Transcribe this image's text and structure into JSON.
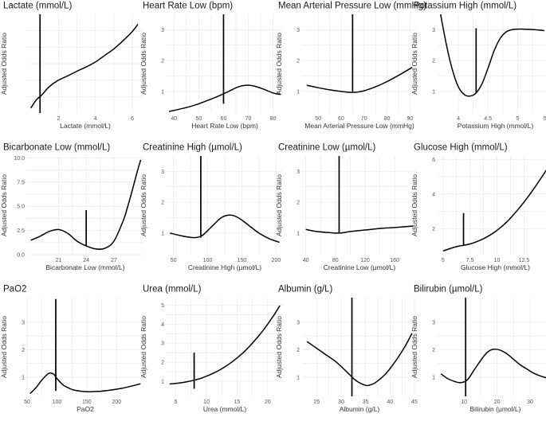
{
  "figure": {
    "background": "#ffffff",
    "line_color": "#000000",
    "grid_color": "#e6e6e6"
  },
  "chart_data": [
    {
      "type": "line",
      "title": "Lactate (mmol/L)",
      "xlabel": "Lactate (mmol/L)",
      "ylabel": "Adjusted Odds Ratio",
      "xlim": [
        0.3,
        6.6
      ],
      "ylim": [
        0.5,
        3.5
      ],
      "xticks": [
        2,
        4,
        6
      ],
      "yticks": [],
      "x": [
        0.5,
        0.8,
        1.1,
        1.5,
        2.0,
        2.5,
        3.0,
        3.5,
        4.0,
        4.5,
        5.0,
        5.5,
        6.0,
        6.3
      ],
      "y": [
        0.65,
        0.9,
        1.05,
        1.3,
        1.5,
        1.63,
        1.77,
        1.9,
        2.05,
        2.25,
        2.45,
        2.7,
        2.98,
        3.2
      ],
      "cutpoint": 1.0,
      "cutpoint_ylim": [
        0.5,
        3.5
      ]
    },
    {
      "type": "line",
      "title": "Heart Rate Low (bpm)",
      "xlabel": "Heart Rate Low (bpm)",
      "ylabel": "Adjusted Odds Ratio",
      "xlim": [
        37,
        84
      ],
      "ylim": [
        0.3,
        3.5
      ],
      "xticks": [
        40,
        50,
        60,
        70,
        80
      ],
      "yticks": [
        1,
        2,
        3
      ],
      "x": [
        38,
        42,
        46,
        50,
        54,
        58,
        62,
        66,
        69,
        72,
        76,
        80,
        83
      ],
      "y": [
        0.35,
        0.42,
        0.5,
        0.6,
        0.72,
        0.85,
        1.0,
        1.15,
        1.2,
        1.18,
        1.08,
        0.95,
        0.9
      ],
      "cutpoint": 60,
      "cutpoint_ylim": [
        0.6,
        3.5
      ]
    },
    {
      "type": "line",
      "title": "Mean Arterial Pressure Low (mmHg)",
      "xlabel": "Mean Arterial Pressure Low (mmHg)",
      "ylabel": "Adjusted Odds Ratio",
      "xlim": [
        43,
        93
      ],
      "ylim": [
        0.3,
        3.5
      ],
      "xticks": [
        50,
        60,
        70,
        80,
        90
      ],
      "yticks": [
        1,
        2,
        3
      ],
      "x": [
        45,
        50,
        55,
        60,
        64,
        67,
        70,
        75,
        80,
        85,
        91
      ],
      "y": [
        1.2,
        1.12,
        1.05,
        1.0,
        0.97,
        0.98,
        1.02,
        1.15,
        1.32,
        1.52,
        1.78
      ],
      "cutpoint": 65,
      "cutpoint_ylim": [
        1.0,
        3.5
      ]
    },
    {
      "type": "line",
      "title": "Potassium High (mmol/L)",
      "xlabel": "Potassium High (mmol/L)",
      "ylabel": "Adjusted Odds Ratio",
      "xlim": [
        3.65,
        5.6
      ],
      "ylim": [
        0.3,
        3.5
      ],
      "xticks": [
        4.0,
        4.5,
        5.0,
        5.5
      ],
      "yticks": [
        1,
        2,
        3
      ],
      "x": [
        3.7,
        3.8,
        3.9,
        4.0,
        4.1,
        4.2,
        4.3,
        4.4,
        4.5,
        4.6,
        4.7,
        4.8,
        4.9,
        5.0,
        5.1,
        5.2,
        5.3,
        5.45
      ],
      "y": [
        3.5,
        2.5,
        1.7,
        1.15,
        0.9,
        0.85,
        0.95,
        1.25,
        1.75,
        2.3,
        2.7,
        2.92,
        3.0,
        3.02,
        3.02,
        3.01,
        3.0,
        2.97
      ],
      "cutpoint": 4.3,
      "cutpoint_ylim": [
        0.95,
        3.05
      ]
    },
    {
      "type": "line",
      "title": "Bicarbonate Low (mmol/L)",
      "xlabel": "Bicarbonate Low (mmol/L)",
      "ylabel": "Adjusted Odds Ratio",
      "xlim": [
        17.6,
        30.2
      ],
      "ylim": [
        0,
        10.2
      ],
      "xticks": [
        21,
        24,
        27
      ],
      "yticks": [
        0.0,
        2.5,
        5.0,
        7.5,
        10.0
      ],
      "x": [
        18,
        19,
        20,
        21,
        22,
        23,
        24,
        25,
        26,
        27,
        28,
        28.5,
        29,
        29.5,
        29.9
      ],
      "y": [
        1.5,
        1.9,
        2.4,
        2.6,
        2.2,
        1.4,
        0.9,
        0.6,
        0.65,
        1.4,
        3.5,
        5.0,
        6.7,
        8.5,
        9.8
      ],
      "cutpoint": 24,
      "cutpoint_ylim": [
        0.9,
        4.6
      ]
    },
    {
      "type": "line",
      "title": "Creatinine High (µmol/L)",
      "xlabel": "Creatinine High (µmol/L)",
      "ylabel": "Adjusted Odds Ratio",
      "xlim": [
        40,
        210
      ],
      "ylim": [
        0.3,
        3.5
      ],
      "xticks": [
        50,
        100,
        150,
        200
      ],
      "yticks": [
        1,
        2,
        3
      ],
      "x": [
        45,
        60,
        75,
        85,
        92,
        100,
        110,
        120,
        130,
        140,
        150,
        160,
        175,
        190,
        205
      ],
      "y": [
        1.0,
        0.92,
        0.86,
        0.86,
        0.92,
        1.08,
        1.3,
        1.5,
        1.58,
        1.55,
        1.42,
        1.25,
        1.0,
        0.82,
        0.7
      ],
      "cutpoint": 90,
      "cutpoint_ylim": [
        0.85,
        3.5
      ]
    },
    {
      "type": "line",
      "title": "Creatinine Low (µmol/L)",
      "xlabel": "Creatinine Low (µmol/L)",
      "ylabel": "Adjusted Odds Ratio",
      "xlim": [
        35,
        190
      ],
      "ylim": [
        0.3,
        3.5
      ],
      "xticks": [
        40,
        80,
        120,
        160
      ],
      "yticks": [
        1,
        2,
        3
      ],
      "x": [
        40,
        55,
        70,
        85,
        100,
        120,
        140,
        160,
        180,
        185
      ],
      "y": [
        1.12,
        1.05,
        1.02,
        1.0,
        1.05,
        1.1,
        1.15,
        1.18,
        1.22,
        1.23
      ],
      "cutpoint": 85,
      "cutpoint_ylim": [
        1.0,
        3.5
      ]
    },
    {
      "type": "line",
      "title": "Glucose High (mmol/L)",
      "xlabel": "Glucose High (mmol/L)",
      "ylabel": "Adjusted Odds Ratio",
      "xlim": [
        4.5,
        15.2
      ],
      "ylim": [
        0.5,
        6.2
      ],
      "xticks": [
        5.0,
        7.5,
        10.0,
        12.5
      ],
      "yticks": [
        2,
        4,
        6
      ],
      "x": [
        5.0,
        5.5,
        6.0,
        6.5,
        7.0,
        7.5,
        8.0,
        9.0,
        10.0,
        11.0,
        12.0,
        13.0,
        14.0,
        15.0
      ],
      "y": [
        0.72,
        0.82,
        0.92,
        1.0,
        1.05,
        1.12,
        1.22,
        1.5,
        1.9,
        2.45,
        3.15,
        3.95,
        4.85,
        5.8
      ],
      "cutpoint": 6.9,
      "cutpoint_ylim": [
        1.05,
        2.9
      ]
    },
    {
      "type": "line",
      "title": "PaO2",
      "xlabel": "PaO2",
      "ylabel": "Adjusted Odds Ratio",
      "xlim": [
        50,
        245
      ],
      "ylim": [
        0.3,
        3.9
      ],
      "xticks": [
        50,
        100,
        150,
        200
      ],
      "yticks": [
        1,
        2,
        3
      ],
      "x": [
        55,
        65,
        75,
        85,
        90,
        95,
        100,
        110,
        120,
        130,
        150,
        170,
        190,
        210,
        230,
        240
      ],
      "y": [
        0.4,
        0.62,
        0.9,
        1.12,
        1.15,
        1.1,
        0.95,
        0.72,
        0.6,
        0.52,
        0.47,
        0.48,
        0.53,
        0.6,
        0.7,
        0.76
      ],
      "cutpoint": 98,
      "cutpoint_ylim": [
        0.5,
        3.85
      ]
    },
    {
      "type": "line",
      "title": "Urea (mmol/L)",
      "xlabel": "Urea (mmol/L)",
      "ylabel": "Adjusted Odds Ratio",
      "xlim": [
        3.5,
        22.5
      ],
      "ylim": [
        0.2,
        5.4
      ],
      "xticks": [
        5,
        10,
        15,
        20
      ],
      "yticks": [
        1,
        2,
        3,
        4,
        5
      ],
      "x": [
        4,
        5,
        6,
        7,
        8,
        9,
        10,
        11,
        12,
        13,
        14,
        15,
        16,
        17,
        18,
        19,
        20,
        21,
        22
      ],
      "y": [
        0.85,
        0.88,
        0.92,
        0.98,
        1.05,
        1.14,
        1.26,
        1.4,
        1.56,
        1.75,
        1.97,
        2.22,
        2.5,
        2.82,
        3.18,
        3.57,
        4.0,
        4.47,
        4.98
      ],
      "cutpoint": 8,
      "cutpoint_ylim": [
        0.6,
        2.5
      ]
    },
    {
      "type": "line",
      "title": "Albumin (g/L)",
      "xlabel": "Albumin (g/L)",
      "ylabel": "Adjusted Odds Ratio",
      "xlim": [
        22,
        45.5
      ],
      "ylim": [
        0.3,
        3.9
      ],
      "xticks": [
        25,
        30,
        35,
        40,
        45
      ],
      "yticks": [
        1,
        2,
        3
      ],
      "x": [
        23,
        25,
        27,
        29,
        31,
        33,
        35,
        36,
        37,
        39,
        41,
        43,
        44.5
      ],
      "y": [
        2.3,
        2.05,
        1.8,
        1.55,
        1.22,
        0.88,
        0.7,
        0.72,
        0.8,
        1.1,
        1.55,
        2.1,
        2.6
      ],
      "cutpoint": 32.2,
      "cutpoint_ylim": [
        0.3,
        3.9
      ]
    },
    {
      "type": "line",
      "title": "Bilirubin (µmol/L)",
      "xlabel": "Bilirubin (µmol/L)",
      "ylabel": "Adjusted Odds Ratio",
      "xlim": [
        2,
        37
      ],
      "ylim": [
        0.3,
        3.9
      ],
      "xticks": [
        10,
        20,
        30
      ],
      "yticks": [
        1,
        2,
        3
      ],
      "x": [
        3,
        5,
        7,
        9,
        11,
        13,
        15,
        17,
        19,
        21,
        23,
        25,
        27,
        29,
        31,
        33,
        35.5
      ],
      "y": [
        1.12,
        0.95,
        0.85,
        0.8,
        0.9,
        1.25,
        1.6,
        1.9,
        2.02,
        1.98,
        1.85,
        1.65,
        1.45,
        1.3,
        1.15,
        1.05,
        0.95
      ],
      "cutpoint": 10.5,
      "cutpoint_ylim": [
        0.3,
        3.9
      ]
    }
  ]
}
